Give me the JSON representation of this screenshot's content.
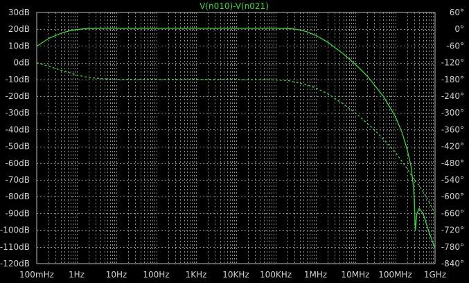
{
  "chart_data": {
    "type": "line",
    "title": "V(n010)-V(n021)",
    "xscale": "log",
    "xlim": [
      0.1,
      1000000000
    ],
    "ylim_left": [
      -120,
      30
    ],
    "ylim_right": [
      -840,
      60
    ],
    "grid": true,
    "x_ticks": [
      {
        "value": 0.1,
        "label": "100mHz"
      },
      {
        "value": 1,
        "label": "1Hz"
      },
      {
        "value": 10,
        "label": "10Hz"
      },
      {
        "value": 100,
        "label": "100Hz"
      },
      {
        "value": 1000,
        "label": "1KHz"
      },
      {
        "value": 10000,
        "label": "10KHz"
      },
      {
        "value": 100000,
        "label": "100KHz"
      },
      {
        "value": 1000000,
        "label": "1MHz"
      },
      {
        "value": 10000000,
        "label": "10MHz"
      },
      {
        "value": 100000000,
        "label": "100MHz"
      },
      {
        "value": 1000000000,
        "label": "1GHz"
      }
    ],
    "y_left_ticks": [
      {
        "value": 30,
        "label": "30dB"
      },
      {
        "value": 20,
        "label": "20dB"
      },
      {
        "value": 10,
        "label": "10dB"
      },
      {
        "value": 0,
        "label": "0dB"
      },
      {
        "value": -10,
        "label": "-10dB"
      },
      {
        "value": -20,
        "label": "-20dB"
      },
      {
        "value": -30,
        "label": "-30dB"
      },
      {
        "value": -40,
        "label": "-40dB"
      },
      {
        "value": -50,
        "label": "-50dB"
      },
      {
        "value": -60,
        "label": "-60dB"
      },
      {
        "value": -70,
        "label": "-70dB"
      },
      {
        "value": -80,
        "label": "-80dB"
      },
      {
        "value": -90,
        "label": "-90dB"
      },
      {
        "value": -100,
        "label": "-100dB"
      },
      {
        "value": -110,
        "label": "-110dB"
      },
      {
        "value": -120,
        "label": "-120dB"
      }
    ],
    "y_right_ticks": [
      {
        "value": 60,
        "label": "60°"
      },
      {
        "value": 0,
        "label": "0°"
      },
      {
        "value": -60,
        "label": "-60°"
      },
      {
        "value": -120,
        "label": "-120°"
      },
      {
        "value": -180,
        "label": "-180°"
      },
      {
        "value": -240,
        "label": "-240°"
      },
      {
        "value": -300,
        "label": "-300°"
      },
      {
        "value": -360,
        "label": "-360°"
      },
      {
        "value": -420,
        "label": "-420°"
      },
      {
        "value": -480,
        "label": "-480°"
      },
      {
        "value": -540,
        "label": "-540°"
      },
      {
        "value": -600,
        "label": "-600°"
      },
      {
        "value": -660,
        "label": "-660°"
      },
      {
        "value": -720,
        "label": "-720°"
      },
      {
        "value": -780,
        "label": "-780°"
      },
      {
        "value": -840,
        "label": "-840°"
      }
    ],
    "series": [
      {
        "axis": "left",
        "style": "solid",
        "color": "#33dd33",
        "x": [
          0.1,
          0.2,
          0.4,
          0.7,
          1,
          1.5,
          2,
          5,
          10,
          100,
          1000,
          10000,
          100000,
          200000,
          300000,
          400000,
          600000,
          1000000,
          2000000,
          5000000,
          10000000,
          20000000,
          50000000,
          100000000,
          150000000,
          200000000,
          250000000,
          280000000,
          300000000,
          320000000,
          350000000,
          400000000,
          500000000,
          700000000,
          1000000000
        ],
        "y": [
          9.8,
          14.5,
          17.5,
          19.2,
          19.8,
          20.2,
          20.4,
          20.5,
          20.5,
          20.5,
          20.5,
          20.5,
          20.5,
          20.4,
          20.1,
          19.6,
          18.5,
          16.4,
          12.3,
          5.2,
          -1,
          -8,
          -20,
          -32,
          -42,
          -52,
          -62,
          -72,
          -80,
          -100,
          -90,
          -87,
          -90,
          -101,
          -111
        ]
      },
      {
        "axis": "right",
        "style": "dashed",
        "color": "#33dd33",
        "x": [
          0.1,
          0.2,
          0.5,
          1,
          2,
          5,
          10,
          100,
          1000,
          10000,
          100000,
          200000,
          500000,
          1000000,
          2000000,
          5000000,
          10000000,
          30000000,
          100000000,
          200000000,
          300000000,
          400000000,
          600000000,
          1000000000
        ],
        "y": [
          -120,
          -133,
          -151,
          -164,
          -173,
          -178,
          -180,
          -180,
          -180,
          -180,
          -182,
          -184,
          -196,
          -210,
          -231,
          -268,
          -300,
          -360,
          -440,
          -500,
          -540,
          -560,
          -600,
          -660
        ]
      }
    ]
  }
}
